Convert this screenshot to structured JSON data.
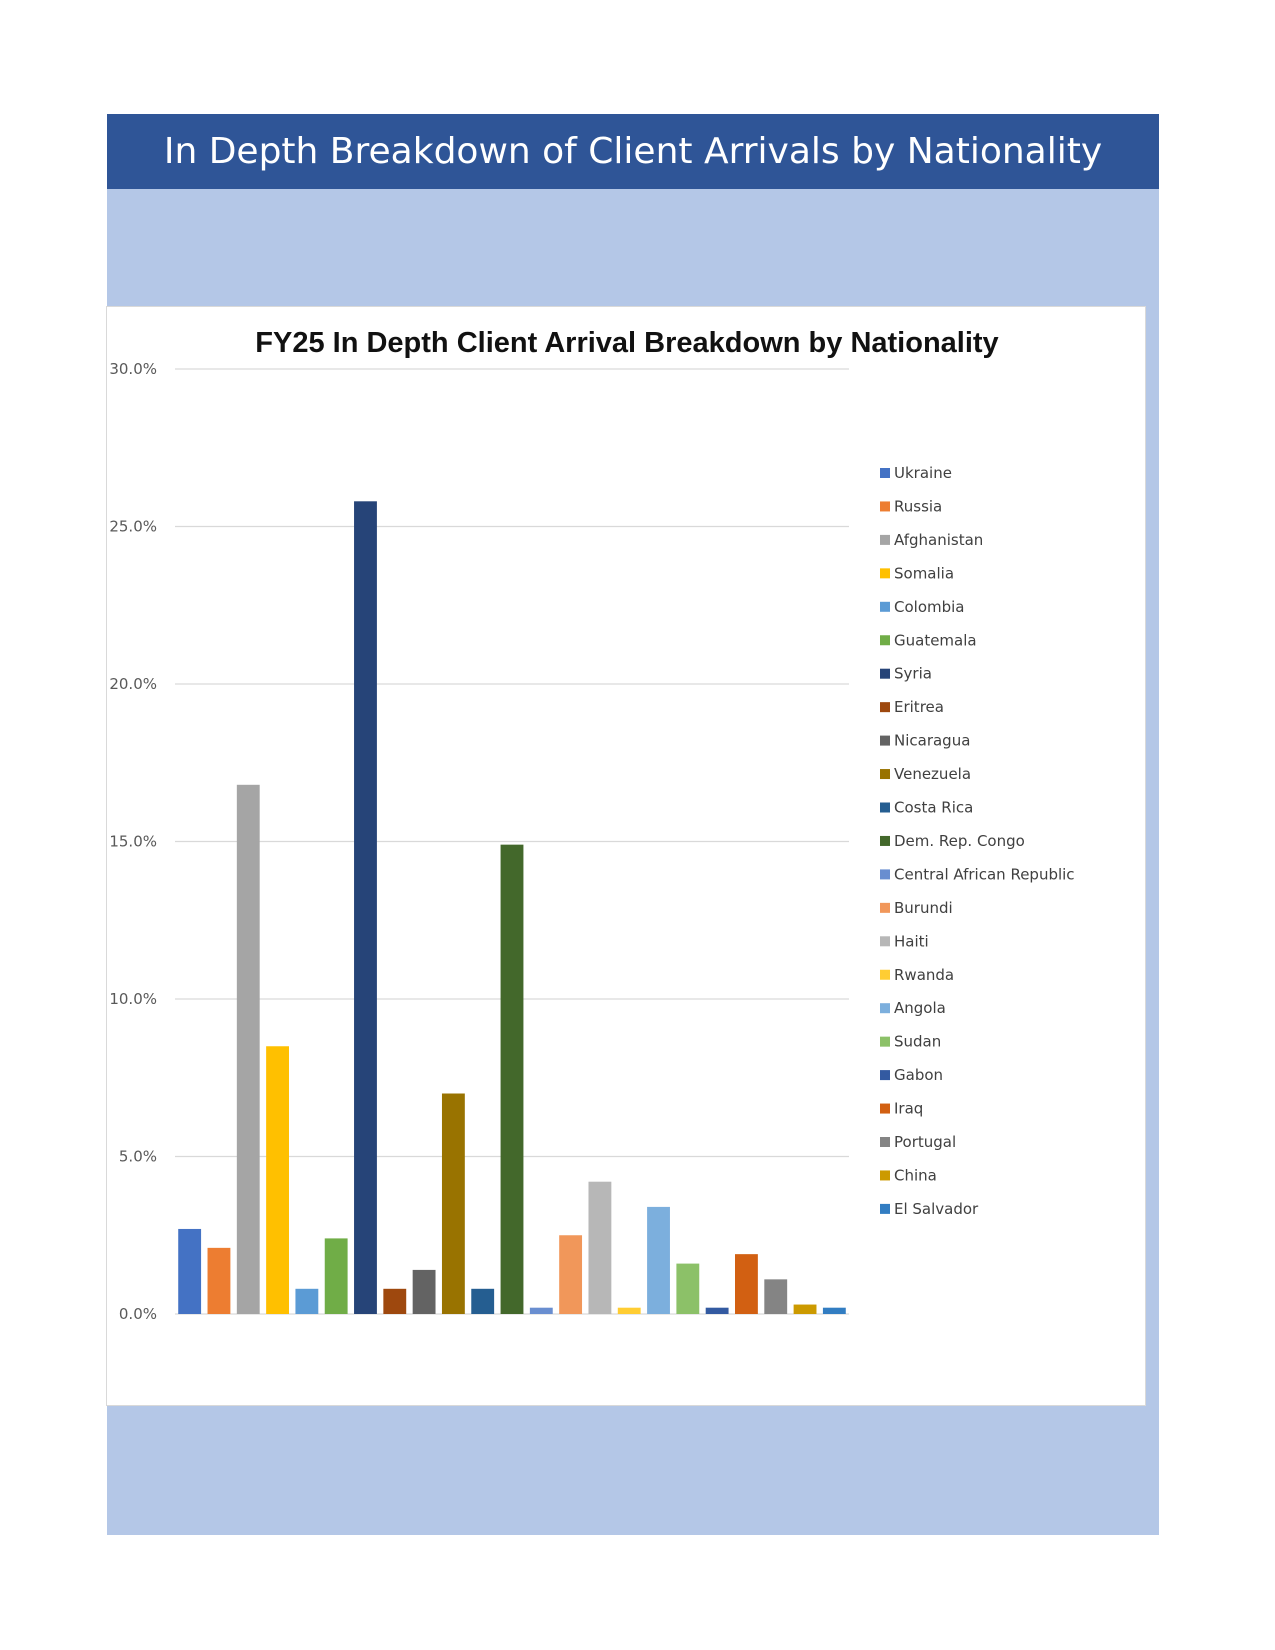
{
  "header": {
    "title": "In Depth Breakdown of Client Arrivals by Nationality"
  },
  "chart_data": {
    "type": "bar",
    "title": "FY25 In Depth Client Arrival Breakdown by Nationality",
    "xlabel": "",
    "ylabel": "",
    "ylim": [
      0,
      30
    ],
    "yticks": [
      "0.0%",
      "5.0%",
      "10.0%",
      "15.0%",
      "20.0%",
      "25.0%",
      "30.0%"
    ],
    "grid": true,
    "legend_position": "right",
    "categories": [
      "Ukraine",
      "Russia",
      "Afghanistan",
      "Somalia",
      "Colombia",
      "Guatemala",
      "Syria",
      "Eritrea",
      "Nicaragua",
      "Venezuela",
      "Costa Rica",
      "Dem. Rep. Congo",
      "Central African Republic",
      "Burundi",
      "Haiti",
      "Rwanda",
      "Angola",
      "Sudan",
      "Gabon",
      "Iraq",
      "Portugal",
      "China",
      "El Salvador"
    ],
    "values": [
      2.7,
      2.1,
      16.8,
      8.5,
      0.8,
      2.4,
      25.8,
      0.8,
      1.4,
      7.0,
      0.8,
      14.9,
      0.2,
      2.5,
      4.2,
      0.2,
      3.4,
      1.6,
      0.2,
      1.9,
      1.1,
      0.3,
      0.2
    ],
    "colors": [
      "#4472c4",
      "#ed7d31",
      "#a5a5a5",
      "#ffc000",
      "#5b9bd5",
      "#70ad47",
      "#264478",
      "#9e480e",
      "#636363",
      "#997300",
      "#255e91",
      "#43682b",
      "#698ed0",
      "#f1975a",
      "#b7b7b7",
      "#ffcd33",
      "#7cafdd",
      "#8cc168",
      "#335aa1",
      "#d26012",
      "#848484",
      "#cc9a00",
      "#327dc2"
    ]
  }
}
